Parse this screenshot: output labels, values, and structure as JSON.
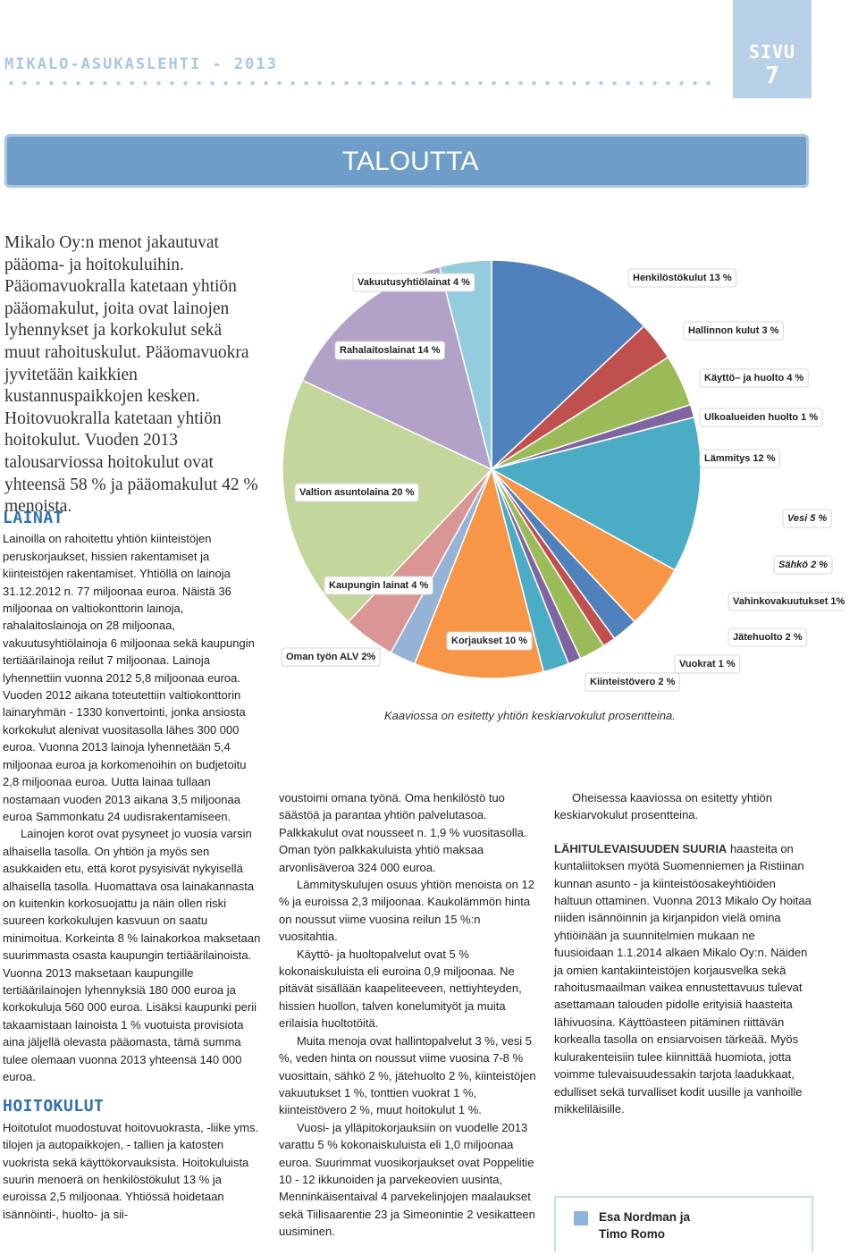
{
  "header": {
    "publication": "MIKALO-ASUKASLEHTI - 2013",
    "page_label": "SIVU",
    "page_number": "7"
  },
  "banner": "TALOUTTA",
  "intro": "Mikalo Oy:n menot jakautuvat pääoma- ja hoitokuluihin. Pääomavuokralla katetaan yhtiön pääomakulut, joita ovat lainojen lyhennykset ja korkokulut sekä muut rahoituskulut. Pääomavuokra jyvitetään kaikkien kustannuspaikkojen kesken. Hoitovuokralla katetaan yhtiön hoitokulut. Vuoden 2013 talousarviossa hoitokulut ovat yhteensä 58 % ja pääomakulut 42 % menoista.",
  "lainat": {
    "heading": "LAINAT",
    "paragraphs": [
      "Lainoilla on rahoitettu yhtiön kiinteistöjen peruskorjaukset, hissien rakentamiset ja kiinteistöjen rakentamiset. Yhtiöllä on lainoja 31.12.2012 n. 77 miljoonaa euroa. Näistä 36 miljoonaa on valtiokonttorin lainoja, rahalaitoslainoja on 28 miljoonaa, vakuutusyhtiölainoja 6 miljoonaa sekä kaupungin tertiäärilainoja reilut 7 miljoonaa. Lainoja lyhennettiin vuonna 2012 5,8 miljoonaa euroa. Vuoden 2012 aikana toteutettiin valtiokonttorin lainaryhmän - 1330 konvertointi, jonka ansiosta korkokulut alenivat vuositasolla lähes 300 000 euroa. Vuonna 2013 lainoja lyhennetään 5,4 miljoonaa euroa ja korkomenoihin on budjetoitu 2,8 miljoonaa euroa. Uutta lainaa tullaan nostamaan vuoden 2013 aikana 3,5 miljoonaa euroa Sammonkatu 24 uudisrakentamiseen.",
      "Lainojen korot ovat pysyneet jo vuosia varsin alhaisella tasolla. On yhtiön ja myös sen asukkaiden etu, että korot pysyisivät nykyisellä alhaisella tasolla. Huomattava osa lainakannasta on kuitenkin korkosuojattu ja näin ollen riski suureen korkokulujen kasvuun on saatu minimoitua. Korkeinta 8 % lainakorkoa maksetaan suurimmasta osasta kaupungin tertiäärilainoista. Vuonna 2013 maksetaan kaupungille tertiäärilainojen lyhennyksiä 180 000 euroa ja korkokuluja 560 000 euroa. Lisäksi kaupunki perii takaamistaan lainoista 1 % vuotuista provisiota aina jäljellä olevasta pääomasta, tämä summa tulee olemaan vuonna 2013 yhteensä 140 000 euroa."
    ]
  },
  "hoitokulut": {
    "heading": "HOITOKULUT",
    "paragraphs": [
      "Hoitotulot muodostuvat hoitovuokrasta, -liike yms. tilojen ja autopaikkojen, - tallien ja katosten vuokrista sekä käyttökorvauksista. Hoitokuluista suurin menoerä on henkilöstökulut 13 % ja euroissa 2,5 miljoonaa. Yhtiössä hoidetaan isännöinti-, huolto- ja sii-"
    ]
  },
  "middle_column": [
    "voustoimi omana työnä. Oma henkilöstö tuo säästöä ja parantaa yhtiön palvelutasoa. Palkkakulut ovat nousseet n. 1,9 % vuositasolla. Oman työn palkkakuluista yhtiö maksaa arvonlisäveroa 324 000 euroa.",
    "Lämmityskulujen osuus yhtiön menoista on 12 % ja euroissa 2,3 miljoonaa. Kaukolämmön hinta on noussut viime vuosina reilun 15 %:n vuositahtia.",
    "Käyttö- ja huoltopalvelut ovat 5 % kokonaiskuluista eli euroina 0,9 miljoonaa. Ne pitävät sisällään kaapeliteeveen, nettiyhteyden, hissien huollon, talven konelumityöt ja muita erilaisia huoltotöitä.",
    "Muita menoja ovat hallintopalvelut 3 %, vesi 5 %, veden hinta on noussut viime vuosina 7-8 % vuosittain, sähkö 2 %, jätehuolto 2 %, kiinteistöjen vakuutukset 1 %, tonttien vuokrat 1 %, kiinteistövero 2 %, muut hoitokulut 1 %.",
    "Vuosi- ja ylläpitokorjauksiin on vuodelle 2013 varattu 5 % kokonaiskuluista eli 1,0 miljoonaa euroa. Suurimmat vuosikorjaukset ovat Poppelitie 10 - 12 ikkunoiden ja parvekeovien uusinta, Menninkäisentaival 4 parvekelinjojen maalaukset sekä Tiilisaarentie 23 ja Simeonintie 2 vesikatteen uusiminen."
  ],
  "right_column": {
    "paragraph": "Oheisessa kaaviossa on esitetty yhtiön keskiarvokulut prosentteina.",
    "lead": "LÄHITULEVAISUUDEN SUURIA",
    "text": "haasteita on kuntaliitoksen myötä Suomenniemen ja Ristiinan kunnan asunto - ja kiinteistöosakeyhtiöiden haltuun ottaminen. Vuonna 2013 Mikalo Oy hoitaa niiden isännöinnin ja kirjanpidon vielä omina yhtiöinään ja suunnitelmien mukaan ne fuusioidaan 1.1.2014 alkaen Mikalo Oy:n. Näiden ja omien kantakiinteistöjen korjausvelka sekä rahoitusmaailman vaikea ennustettavuus tulevat asettamaan talouden pidolle erityisiä haasteita lähivuosina. Käyttöasteen pitäminen riittävän korkealla tasolla on ensiarvoisen tärkeää. Myös kulurakenteisiin tulee kiinnittää huomiota, jotta voimme tulevaisuudessakin tarjota laadukkaat, edulliset sekä turvalliset kodit uusille ja vanhoille mikkeliläisille."
  },
  "author": {
    "line1": "Esa Nordman ja",
    "line2": "Timo Romo"
  },
  "chart_data": {
    "type": "pie",
    "values": [
      13,
      3,
      4,
      1,
      12,
      5,
      2,
      1,
      2,
      1,
      2,
      10,
      2,
      4,
      20,
      14,
      4
    ],
    "value_labels": [
      "Henkilöstökulut 13 %",
      "Hallinnon kulut 3 %",
      "Käyttö– ja huolto 4 %",
      "Ulkoalueiden huolto 1 %",
      "Lämmitys 12 %",
      "Vesi 5 %",
      "Sähkö 2 %",
      "Vahinkovakuutukset 1%",
      "Jätehuolto 2 %",
      "Vuokrat 1 %",
      "Kiinteistövero 2 %",
      "Korjaukset 10 %",
      "Oman työn ALV 2%",
      "Kaupungin lainat 4 %",
      "Valtion asuntolaina 20 %",
      "Rahalaitoslainat 14 %",
      "Vakuutusyhtiölainat 4 %"
    ],
    "colors": [
      "#4f81bd",
      "#c0504d",
      "#9bbb59",
      "#8064a2",
      "#4bacc6",
      "#f79646",
      "#4f81bd",
      "#c0504d",
      "#9bbb59",
      "#8064a2",
      "#4bacc6",
      "#f79646",
      "#95b3d7",
      "#d99694",
      "#c3d69b",
      "#b3a2c7",
      "#93cddd"
    ],
    "caption": "Kaaviossa on esitetty yhtiön keskiarvokulut prosentteina."
  }
}
